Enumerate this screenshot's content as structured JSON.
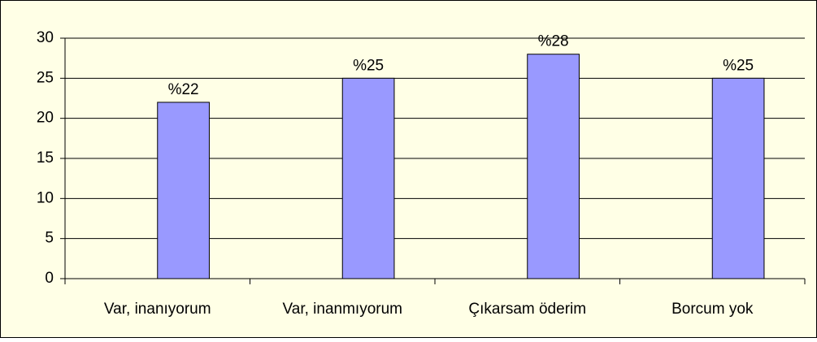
{
  "chart_data": {
    "type": "bar",
    "categories": [
      "Var, inanıyorum",
      "Var, inanmıyorum",
      "Çıkarsam öderim",
      "Borcum yok"
    ],
    "values": [
      22,
      25,
      28,
      25
    ],
    "value_labels": [
      "%22",
      "%25",
      "%28",
      "%25"
    ],
    "color": "#9999ff",
    "ylim": [
      0,
      30
    ],
    "yticks": [
      0,
      5,
      10,
      15,
      20,
      25,
      30
    ],
    "grid": true
  }
}
